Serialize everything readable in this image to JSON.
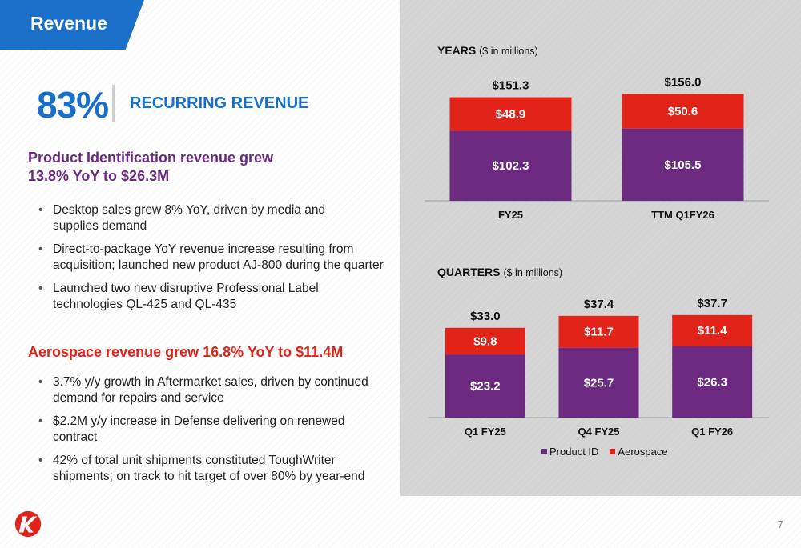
{
  "header": {
    "title": "Revenue"
  },
  "highlight": {
    "percent": "83%",
    "label": "RECURRING REVENUE"
  },
  "product_section": {
    "heading_line1": "Product Identification revenue grew",
    "heading_line2": "13.8% YoY to $26.3M",
    "bullets": [
      {
        "line1": "Desktop sales grew 8% YoY, driven by media and",
        "line2": "supplies demand"
      },
      {
        "line1": "Direct-to-package YoY revenue increase resulting from",
        "line2": "acquisition; launched new product AJ-800 during the quarter"
      },
      {
        "line1": "Launched two new disruptive Professional Label",
        "line2": "technologies QL-425 and QL-435"
      }
    ]
  },
  "aerospace_section": {
    "heading": "Aerospace revenue grew 16.8% YoY to $11.4M",
    "bullets": [
      {
        "line1": "3.7% y/y growth in Aftermarket sales, driven by continued",
        "line2": "demand for repairs and service"
      },
      {
        "line1": "$2.2M y/y increase in Defense delivering on renewed contract",
        "line2": ""
      },
      {
        "line1": "42% of total unit shipments constituted ToughWriter",
        "line2": "shipments; on track to hit target of over 80% by year-end"
      }
    ]
  },
  "colors": {
    "brand_blue": "#1a6fc9",
    "product_id": "#6b2a80",
    "aerospace": "#e2231a"
  },
  "chart_data": [
    {
      "type": "bar",
      "stacked": true,
      "title": "YEARS",
      "subtitle": "($ in millions)",
      "categories": [
        "FY25",
        "TTM Q1FY26"
      ],
      "series": [
        {
          "name": "Product ID",
          "values": [
            102.3,
            105.5
          ],
          "labels": [
            "$102.3",
            "$105.5"
          ]
        },
        {
          "name": "Aerospace",
          "values": [
            48.9,
            50.6
          ],
          "labels": [
            "$48.9",
            "$50.6"
          ]
        }
      ],
      "totals": [
        "$151.3",
        "$156.0"
      ],
      "ylim": [
        0,
        160
      ]
    },
    {
      "type": "bar",
      "stacked": true,
      "title": "QUARTERS",
      "subtitle": "($ in millions)",
      "categories": [
        "Q1 FY25",
        "Q4 FY25",
        "Q1 FY26"
      ],
      "series": [
        {
          "name": "Product ID",
          "values": [
            23.2,
            25.7,
            26.3
          ],
          "labels": [
            "$23.2",
            "$25.7",
            "$26.3"
          ]
        },
        {
          "name": "Aerospace",
          "values": [
            9.8,
            11.7,
            11.4
          ],
          "labels": [
            "$9.8",
            "$11.7",
            "$11.4"
          ]
        }
      ],
      "totals": [
        "$33.0",
        "$37.4",
        "$37.7"
      ],
      "ylim": [
        0,
        40
      ],
      "legend": {
        "position": "bottom"
      }
    }
  ],
  "footer": {
    "page_number": "7"
  }
}
